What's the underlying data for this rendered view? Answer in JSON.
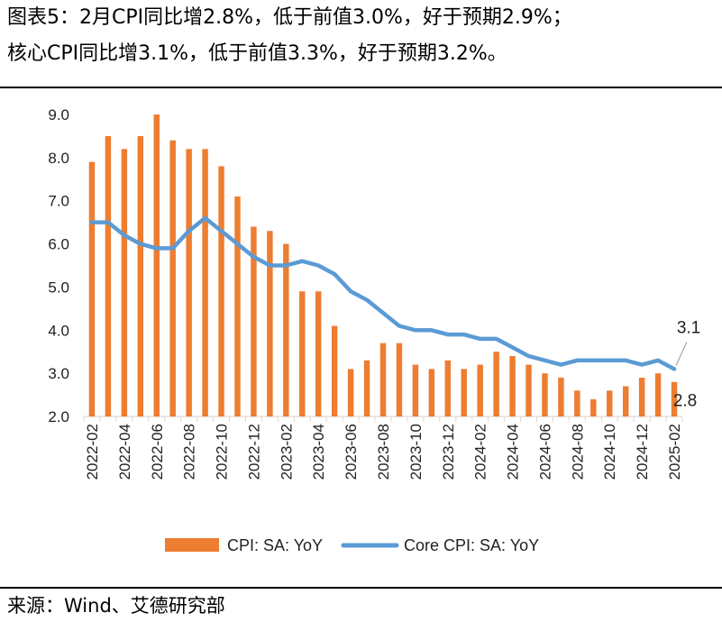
{
  "header": {
    "title_line1": "图表5：2月CPI同比增2.8%，低于前值3.0%，好于预期2.9%；",
    "title_line2": "核心CPI同比增3.1%，低于前值3.3%，好于预期3.2%。"
  },
  "footer": {
    "source": "来源：Wind、艾德研究部"
  },
  "colors": {
    "bar": "#ED7D31",
    "line": "#5B9BD5",
    "axis": "#D9D9D9"
  },
  "chart_data": {
    "type": "bar+line",
    "title": "",
    "xlabel": "",
    "ylabel": "",
    "ylim": [
      2.0,
      9.0
    ],
    "yticks": [
      "2.0",
      "3.0",
      "4.0",
      "5.0",
      "6.0",
      "7.0",
      "8.0",
      "9.0"
    ],
    "grid": false,
    "legend_position": "bottom",
    "x": [
      "2022-02",
      "2022-03",
      "2022-04",
      "2022-05",
      "2022-06",
      "2022-07",
      "2022-08",
      "2022-09",
      "2022-10",
      "2022-11",
      "2022-12",
      "2023-01",
      "2023-02",
      "2023-03",
      "2023-04",
      "2023-05",
      "2023-06",
      "2023-07",
      "2023-08",
      "2023-09",
      "2023-10",
      "2023-11",
      "2023-12",
      "2024-01",
      "2024-02",
      "2024-03",
      "2024-04",
      "2024-05",
      "2024-06",
      "2024-07",
      "2024-08",
      "2024-09",
      "2024-10",
      "2024-11",
      "2024-12",
      "2025-01",
      "2025-02"
    ],
    "x_tick_labels": [
      "2022-02",
      "2022-04",
      "2022-06",
      "2022-08",
      "2022-10",
      "2022-12",
      "2023-02",
      "2023-04",
      "2023-06",
      "2023-08",
      "2023-10",
      "2023-12",
      "2024-02",
      "2024-04",
      "2024-06",
      "2024-08",
      "2024-10",
      "2024-12",
      "2025-02"
    ],
    "series": [
      {
        "name": "CPI: SA: YoY",
        "type": "bar",
        "values": [
          7.9,
          8.5,
          8.2,
          8.5,
          9.0,
          8.4,
          8.2,
          8.2,
          7.8,
          7.1,
          6.4,
          6.3,
          6.0,
          4.9,
          4.9,
          4.1,
          3.1,
          3.3,
          3.7,
          3.7,
          3.2,
          3.1,
          3.3,
          3.1,
          3.2,
          3.5,
          3.4,
          3.2,
          3.0,
          2.9,
          2.6,
          2.4,
          2.6,
          2.7,
          2.9,
          3.0,
          2.8
        ]
      },
      {
        "name": "Core CPI: SA: YoY",
        "type": "line",
        "values": [
          6.5,
          6.5,
          6.2,
          6.0,
          5.9,
          5.9,
          6.3,
          6.6,
          6.3,
          6.0,
          5.7,
          5.5,
          5.5,
          5.6,
          5.5,
          5.3,
          4.9,
          4.7,
          4.4,
          4.1,
          4.0,
          4.0,
          3.9,
          3.9,
          3.8,
          3.8,
          3.6,
          3.4,
          3.3,
          3.2,
          3.3,
          3.3,
          3.3,
          3.3,
          3.2,
          3.3,
          3.1
        ]
      }
    ],
    "annotations": [
      {
        "text": "3.1",
        "series": "Core CPI: SA: YoY",
        "x": "2025-02"
      },
      {
        "text": "2.8",
        "series": "CPI: SA: YoY",
        "x": "2025-02"
      }
    ]
  }
}
